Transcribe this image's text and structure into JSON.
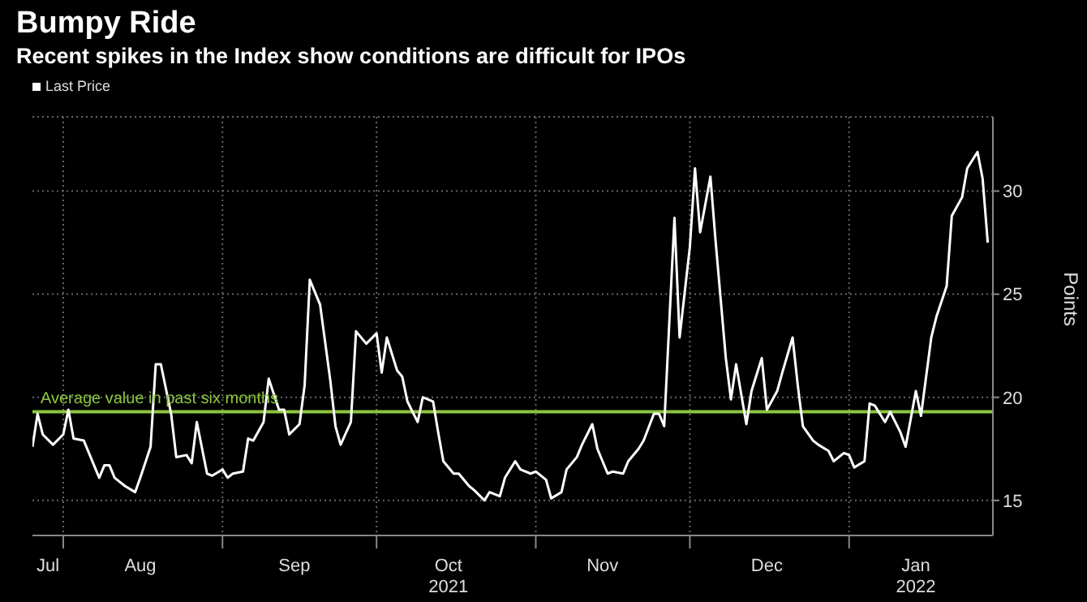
{
  "chart_data": {
    "type": "line",
    "title": "Bumpy Ride",
    "subtitle": "Recent spikes in the Index show conditions are difficult for IPOs",
    "ylabel": "Points",
    "x": [
      "2021-07-26",
      "2021-07-27",
      "2021-07-28",
      "2021-07-30",
      "2021-08-01",
      "2021-08-02",
      "2021-08-03",
      "2021-08-05",
      "2021-08-06",
      "2021-08-08",
      "2021-08-09",
      "2021-08-10",
      "2021-08-11",
      "2021-08-13",
      "2021-08-15",
      "2021-08-16",
      "2021-08-18",
      "2021-08-19",
      "2021-08-20",
      "2021-08-22",
      "2021-08-23",
      "2021-08-25",
      "2021-08-26",
      "2021-08-27",
      "2021-08-29",
      "2021-08-30",
      "2021-09-01",
      "2021-09-02",
      "2021-09-03",
      "2021-09-05",
      "2021-09-06",
      "2021-09-07",
      "2021-09-09",
      "2021-09-10",
      "2021-09-12",
      "2021-09-13",
      "2021-09-14",
      "2021-09-16",
      "2021-09-17",
      "2021-09-18",
      "2021-09-20",
      "2021-09-22",
      "2021-09-23",
      "2021-09-24",
      "2021-09-26",
      "2021-09-27",
      "2021-09-29",
      "2021-10-01",
      "2021-10-02",
      "2021-10-03",
      "2021-10-05",
      "2021-10-06",
      "2021-10-07",
      "2021-10-09",
      "2021-10-10",
      "2021-10-12",
      "2021-10-13",
      "2021-10-14",
      "2021-10-16",
      "2021-10-17",
      "2021-10-19",
      "2021-10-20",
      "2021-10-22",
      "2021-10-23",
      "2021-10-25",
      "2021-10-26",
      "2021-10-28",
      "2021-10-29",
      "2021-10-31",
      "2021-11-01",
      "2021-11-03",
      "2021-11-04",
      "2021-11-06",
      "2021-11-07",
      "2021-11-09",
      "2021-11-10",
      "2021-11-12",
      "2021-11-13",
      "2021-11-15",
      "2021-11-16",
      "2021-11-18",
      "2021-11-19",
      "2021-11-21",
      "2021-11-22",
      "2021-11-24",
      "2021-11-25",
      "2021-11-26",
      "2021-11-28",
      "2021-11-29",
      "2021-12-01",
      "2021-12-02",
      "2021-12-03",
      "2021-12-05",
      "2021-12-06",
      "2021-12-08",
      "2021-12-09",
      "2021-12-10",
      "2021-12-12",
      "2021-12-13",
      "2021-12-15",
      "2021-12-16",
      "2021-12-18",
      "2021-12-19",
      "2021-12-21",
      "2021-12-22",
      "2021-12-23",
      "2021-12-25",
      "2021-12-26",
      "2021-12-28",
      "2021-12-29",
      "2021-12-31",
      "2022-01-01",
      "2022-01-02",
      "2022-01-04",
      "2022-01-05",
      "2022-01-06",
      "2022-01-08",
      "2022-01-09",
      "2022-01-11",
      "2022-01-12",
      "2022-01-14",
      "2022-01-15",
      "2022-01-17",
      "2022-01-18",
      "2022-01-20",
      "2022-01-21",
      "2022-01-23",
      "2022-01-24",
      "2022-01-26",
      "2022-01-27",
      "2022-01-28"
    ],
    "series": [
      {
        "name": "Last Price",
        "color": "#ffffff",
        "values": [
          17.6,
          19.2,
          18.2,
          17.7,
          18.2,
          19.4,
          18.0,
          17.9,
          17.3,
          16.1,
          16.7,
          16.7,
          16.1,
          15.7,
          15.4,
          16.1,
          17.6,
          21.6,
          21.6,
          19.2,
          17.1,
          17.2,
          16.8,
          18.8,
          16.3,
          16.2,
          16.5,
          16.1,
          16.3,
          16.4,
          18.0,
          17.9,
          18.8,
          20.9,
          19.4,
          19.4,
          18.2,
          18.7,
          20.6,
          25.7,
          24.5,
          20.8,
          18.6,
          17.7,
          18.8,
          23.2,
          22.6,
          23.1,
          21.2,
          22.9,
          21.3,
          21.0,
          19.8,
          18.8,
          20.0,
          19.8,
          18.3,
          16.9,
          16.3,
          16.3,
          15.7,
          15.5,
          15.0,
          15.4,
          15.2,
          16.1,
          16.9,
          16.5,
          16.3,
          16.4,
          16.0,
          15.1,
          15.4,
          16.5,
          17.1,
          17.7,
          18.7,
          17.5,
          16.3,
          16.4,
          16.3,
          16.9,
          17.5,
          17.9,
          19.2,
          19.2,
          18.6,
          28.7,
          22.9,
          27.3,
          31.1,
          28.0,
          30.7,
          27.6,
          21.9,
          19.9,
          21.6,
          18.7,
          20.3,
          21.9,
          19.4,
          20.3,
          21.2,
          22.9,
          20.6,
          18.6,
          17.9,
          17.7,
          17.4,
          16.9,
          17.3,
          17.2,
          16.6,
          16.9,
          19.7,
          19.6,
          18.8,
          19.3,
          18.3,
          17.6,
          20.3,
          19.1,
          22.9,
          23.9,
          25.4,
          28.8,
          29.7,
          31.1,
          31.9,
          30.6,
          27.5
        ]
      }
    ],
    "xlim": [
      "2021-07-26",
      "2022-01-29"
    ],
    "xticks": [
      {
        "value": "2021-07-29",
        "label": "Jul"
      },
      {
        "value": "2021-08-01",
        "label": null
      },
      {
        "value": "2021-08-16",
        "label": "Aug"
      },
      {
        "value": "2021-09-01",
        "label": null
      },
      {
        "value": "2021-09-15",
        "label": "Sep"
      },
      {
        "value": "2021-10-01",
        "label": null
      },
      {
        "value": "2021-10-15",
        "label": "Oct\n2021"
      },
      {
        "value": "2021-11-01",
        "label": null
      },
      {
        "value": "2021-11-14",
        "label": "Nov"
      },
      {
        "value": "2021-12-01",
        "label": null
      },
      {
        "value": "2021-12-16",
        "label": "Dec"
      },
      {
        "value": "2022-01-01",
        "label": null
      },
      {
        "value": "2022-01-14",
        "label": "Jan\n2022"
      }
    ],
    "ylim": [
      13.3,
      33.6
    ],
    "yticks": [
      15,
      20,
      25,
      30
    ],
    "ref_lines": [
      {
        "axis": "y",
        "value": 19.3,
        "label": "Average value in past six months",
        "color": "#8cc63f"
      }
    ],
    "grid": true,
    "legend": "top left",
    "marker": "none",
    "line_style": "solid"
  }
}
